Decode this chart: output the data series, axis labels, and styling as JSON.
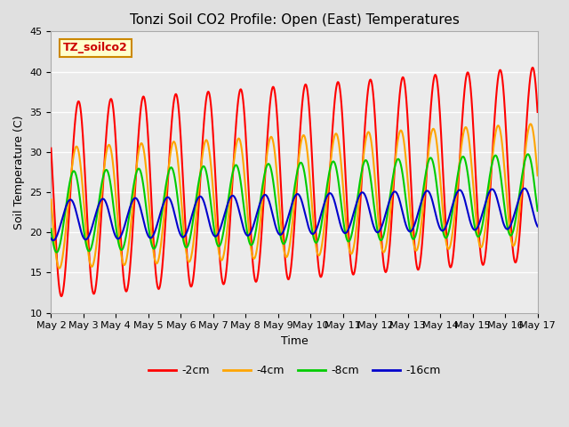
{
  "title": "Tonzi Soil CO2 Profile: Open (East) Temperatures",
  "xlabel": "Time",
  "ylabel": "Soil Temperature (C)",
  "ylim": [
    10,
    45
  ],
  "xlim_days": [
    2,
    17
  ],
  "x_ticks": [
    2,
    3,
    4,
    5,
    6,
    7,
    8,
    9,
    10,
    11,
    12,
    13,
    14,
    15,
    16,
    17
  ],
  "x_tick_labels": [
    "May 2",
    "May 3",
    "May 4",
    "May 5",
    "May 6",
    "May 7",
    "May 8",
    "May 9",
    "May 10",
    "May 11",
    "May 12",
    "May 13",
    "May 14",
    "May 15",
    "May 16",
    "May 17"
  ],
  "colors": {
    "-2cm": "#ff0000",
    "-4cm": "#ffa500",
    "-8cm": "#00cc00",
    "-16cm": "#0000cc"
  },
  "annotation_text": "TZ_soilco2",
  "annotation_color": "#cc0000",
  "annotation_bg": "#ffffcc",
  "annotation_border": "#cc8800",
  "bg_color": "#e0e0e0",
  "plot_bg": "#ebebeb",
  "grid_color": "#ffffff",
  "title_fontsize": 11,
  "label_fontsize": 9,
  "tick_fontsize": 8,
  "legend_fontsize": 9,
  "line_width": 1.5,
  "depths": [
    "-2cm",
    "-4cm",
    "-8cm",
    "-16cm"
  ],
  "depth_amplitudes": [
    12.0,
    7.5,
    5.0,
    2.5
  ],
  "depth_means": [
    24.0,
    23.0,
    22.5,
    21.5
  ],
  "depth_phase_shifts_hours": [
    0.0,
    1.5,
    3.5,
    6.0
  ],
  "trend_slopes": [
    0.3,
    0.2,
    0.15,
    0.1
  ],
  "peak_hour": 14.0,
  "asymmetry": 0.3
}
